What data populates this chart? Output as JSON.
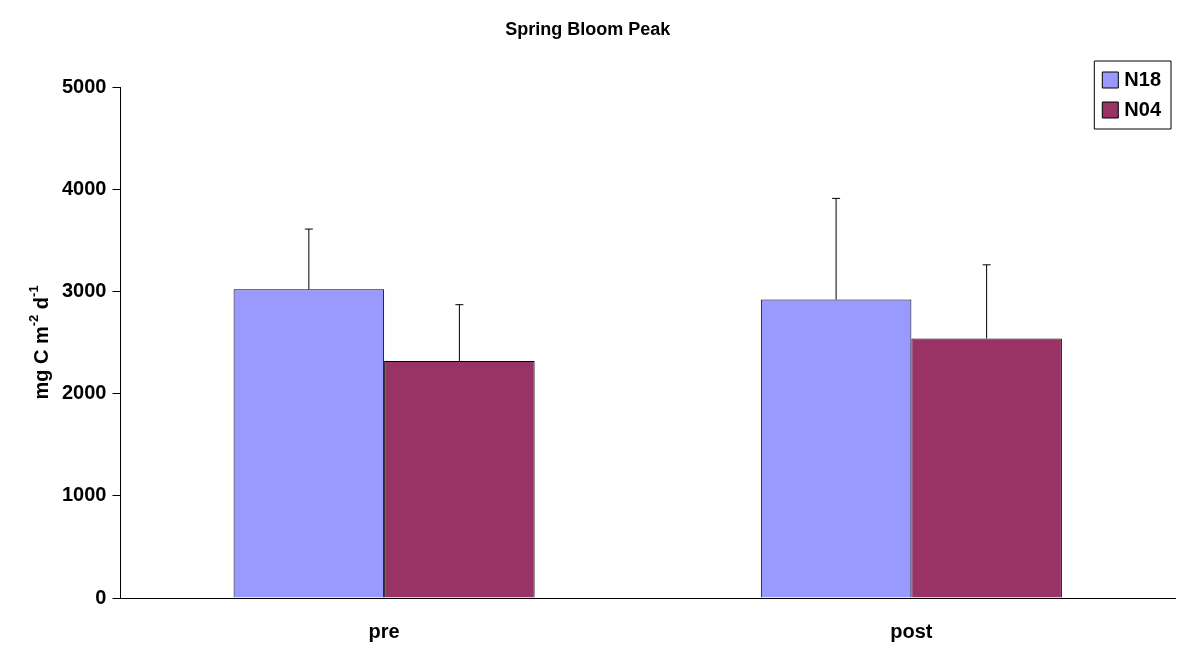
{
  "chart_data": {
    "type": "bar",
    "title": "Spring Bloom Peak",
    "ylabel": "mg C m$^{-2}$ d$^{-1}$",
    "categories": [
      "pre",
      "post"
    ],
    "series": [
      {
        "name": "N18",
        "color": "#9999ff",
        "values": [
          3020,
          2920
        ],
        "errors": [
          [
            3020,
            3610
          ],
          [
            2920,
            3910
          ]
        ]
      },
      {
        "name": "N04",
        "color": "#993366",
        "values": [
          2320,
          2540
        ],
        "errors": [
          [
            2320,
            2870
          ],
          [
            2540,
            3260
          ]
        ]
      }
    ],
    "ylim": [
      0,
      5000
    ],
    "yticks": [
      0,
      1000,
      2000,
      3000,
      4000,
      5000
    ],
    "grid": false,
    "legend": "top right"
  }
}
